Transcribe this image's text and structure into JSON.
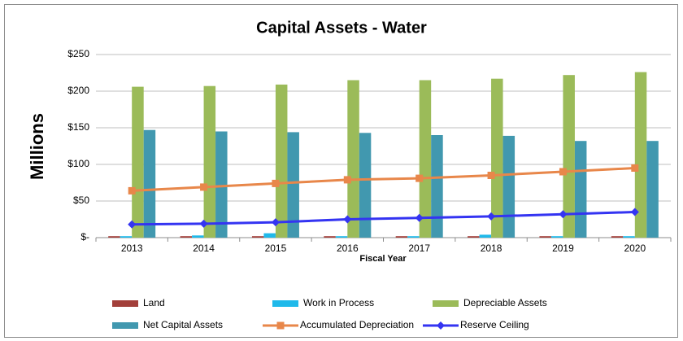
{
  "chart_data": {
    "type": "bar",
    "title": "Capital Assets - Water",
    "y_label": "Millions",
    "x_label": "Fiscal Year",
    "categories": [
      "2013",
      "2014",
      "2015",
      "2016",
      "2017",
      "2018",
      "2019",
      "2020"
    ],
    "ylim": [
      0,
      250
    ],
    "yticks": [
      {
        "value": 0,
        "label": "$-"
      },
      {
        "value": 50,
        "label": "$50"
      },
      {
        "value": 100,
        "label": "$100"
      },
      {
        "value": 150,
        "label": "$150"
      },
      {
        "value": 200,
        "label": "$200"
      },
      {
        "value": 250,
        "label": "$250"
      }
    ],
    "grid": true,
    "legend": "bottom",
    "series": [
      {
        "name": "Land",
        "type": "bar",
        "color": "#a23f3a",
        "values": [
          2,
          2,
          2,
          2,
          2,
          2,
          2,
          2
        ]
      },
      {
        "name": "Work in Process",
        "type": "bar",
        "color": "#1fb9ea",
        "values": [
          2,
          3,
          6,
          2,
          2,
          4,
          2,
          2
        ]
      },
      {
        "name": "Depreciable Assets",
        "type": "bar",
        "color": "#9bbb59",
        "values": [
          206,
          207,
          209,
          215,
          215,
          217,
          222,
          226
        ]
      },
      {
        "name": "Net Capital Assets",
        "type": "bar",
        "color": "#4198af",
        "values": [
          147,
          145,
          144,
          143,
          140,
          139,
          132,
          132
        ]
      },
      {
        "name": "Accumulated Depreciation",
        "type": "line",
        "marker": "square",
        "color": "#e8874a",
        "values": [
          64,
          69,
          74,
          79,
          81,
          85,
          90,
          95
        ]
      },
      {
        "name": "Reserve Ceiling",
        "type": "line",
        "marker": "diamond",
        "color": "#3434f2",
        "values": [
          18,
          19,
          21,
          25,
          27,
          29,
          32,
          35
        ]
      }
    ]
  }
}
